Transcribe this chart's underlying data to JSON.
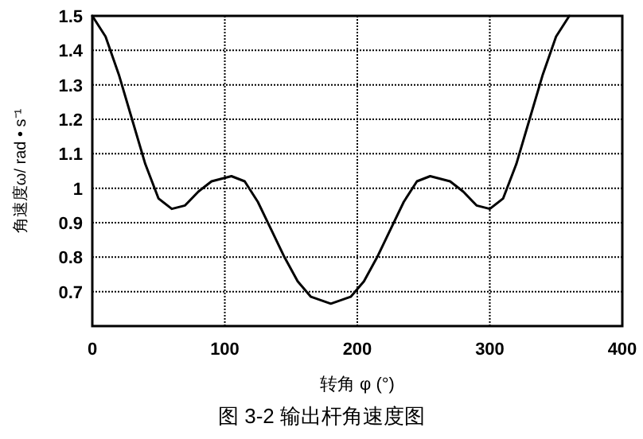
{
  "chart_data": {
    "type": "line",
    "xlabel": "转角 φ (°)",
    "ylabel": "角速度ω/ rad • s⁻¹",
    "annotations": [
      "图 3-2 输出杆角速度图"
    ],
    "x": [
      0,
      10,
      20,
      30,
      40,
      50,
      60,
      70,
      80,
      90,
      105,
      115,
      125,
      135,
      145,
      155,
      165,
      180,
      195,
      205,
      215,
      225,
      235,
      245,
      255,
      270,
      280,
      290,
      300,
      310,
      320,
      330,
      340,
      350,
      360
    ],
    "series": [
      {
        "color": "#000000",
        "values": [
          1.5,
          1.44,
          1.33,
          1.2,
          1.07,
          0.97,
          0.94,
          0.95,
          0.99,
          1.02,
          1.035,
          1.02,
          0.96,
          0.88,
          0.8,
          0.73,
          0.685,
          0.665,
          0.685,
          0.73,
          0.8,
          0.88,
          0.96,
          1.02,
          1.035,
          1.02,
          0.99,
          0.95,
          0.94,
          0.97,
          1.07,
          1.2,
          1.33,
          1.44,
          1.5
        ]
      }
    ],
    "xlim": [
      0,
      400
    ],
    "ylim": [
      0.6,
      1.5
    ],
    "xticks": [
      0,
      100,
      200,
      300,
      400
    ],
    "yticks": [
      0.7,
      0.8,
      0.9,
      1,
      1.1,
      1.2,
      1.3,
      1.4,
      1.5
    ],
    "grid": true
  }
}
